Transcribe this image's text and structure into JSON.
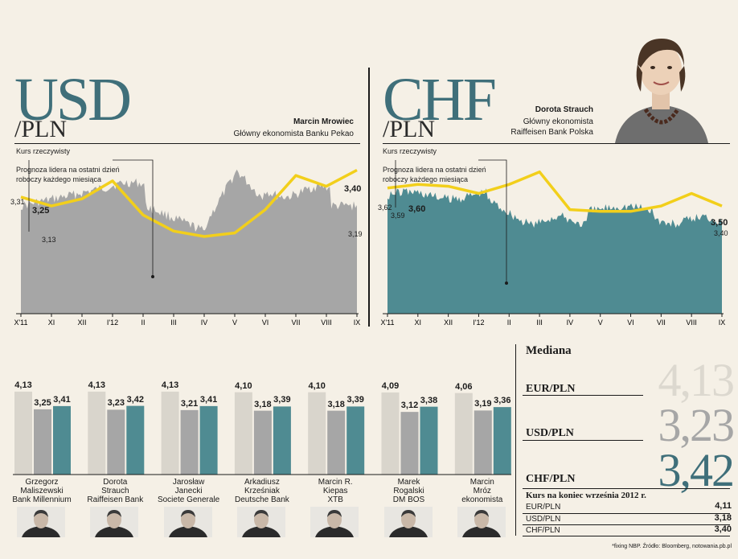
{
  "usd": {
    "title_big": "USD",
    "title_pair": "/PLN",
    "economist_name": "Marcin Mrowiec",
    "economist_role": "Główny ekonomista Banku Pekao",
    "legend_actual": "Kurs rzeczywisty",
    "legend_forecast_1": "Prognoza lidera na ostatni dzień",
    "legend_forecast_2": "roboczy każdego miesiąca"
  },
  "chf": {
    "title_big": "CHF",
    "title_pair": "/PLN",
    "economist_name": "Dorota Strauch",
    "economist_role_1": "Główny ekonomista",
    "economist_role_2": "Raiffeisen Bank Polska",
    "legend_actual": "Kurs rzeczywisty",
    "legend_forecast_1": "Prognoza lidera na ostatni dzień",
    "legend_forecast_2": "roboczy każdego miesiąca"
  },
  "chart_data": [
    {
      "type": "area",
      "id": "usd-pln",
      "categories": [
        "X'11",
        "XI",
        "XII",
        "I'12",
        "II",
        "III",
        "IV",
        "V",
        "VI",
        "VII",
        "VIII",
        "IX"
      ],
      "ylim": [
        2.6,
        3.55
      ],
      "series": [
        {
          "values": [
            3.25,
            3.2,
            3.24,
            3.34,
            3.15,
            3.06,
            3.03,
            3.05,
            3.18,
            3.37,
            3.31,
            3.4
          ]
        }
      ],
      "annotations": [
        "3,31",
        "3,25",
        "3,13",
        "3,40",
        "3,19"
      ]
    },
    {
      "type": "area",
      "id": "chf-pln",
      "categories": [
        "X'11",
        "XI",
        "XII",
        "I'12",
        "II",
        "III",
        "IV",
        "V",
        "VI",
        "VII",
        "VIII",
        "IX"
      ],
      "ylim": [
        2.9,
        3.85
      ],
      "series": [
        {
          "values": [
            3.6,
            3.62,
            3.61,
            3.57,
            3.62,
            3.69,
            3.48,
            3.47,
            3.47,
            3.5,
            3.57,
            3.5
          ]
        }
      ],
      "annotations": [
        "3,62",
        "3,59",
        "3,60",
        "3,50",
        "3,40"
      ]
    },
    {
      "type": "bar",
      "id": "forecasters",
      "categories": [
        "Grzegorz Maliszewski Bank Millennium",
        "Dorota Strauch Raiffeisen Bank",
        "Jarosław Janecki Societe Generale",
        "Arkadiusz Krześniak Deutsche Bank",
        "Marcin R. Kiepas XTB",
        "Marek Rogalski DM BOS",
        "Marcin Mróz ekonomista"
      ],
      "series": [
        {
          "values": [
            4.13,
            4.13,
            4.13,
            4.1,
            4.1,
            4.09,
            4.06
          ]
        },
        {
          "values": [
            3.25,
            3.23,
            3.21,
            3.18,
            3.18,
            3.12,
            3.19
          ]
        },
        {
          "values": [
            3.41,
            3.42,
            3.41,
            3.39,
            3.39,
            3.38,
            3.36
          ]
        }
      ],
      "labels": [
        [
          "4,13",
          "3,25",
          "3,41"
        ],
        [
          "4,13",
          "3,23",
          "3,42"
        ],
        [
          "4,13",
          "3,21",
          "3,41"
        ],
        [
          "4,10",
          "3,18",
          "3,39"
        ],
        [
          "4,10",
          "3,18",
          "3,39"
        ],
        [
          "4,09",
          "3,12",
          "3,38"
        ],
        [
          "4,06",
          "3,19",
          "3,36"
        ]
      ],
      "ylim": [
        0,
        4.5
      ]
    }
  ],
  "forecasters": [
    {
      "l1": "Grzegorz",
      "l2": "Maliszewski",
      "l3": "Bank Millennium"
    },
    {
      "l1": "Dorota",
      "l2": "Strauch",
      "l3": "Raiffeisen Bank"
    },
    {
      "l1": "Jarosław",
      "l2": "Janecki",
      "l3": "Societe Generale"
    },
    {
      "l1": "Arkadiusz",
      "l2": "Krześniak",
      "l3": "Deutsche Bank"
    },
    {
      "l1": "Marcin R.",
      "l2": "Kiepas",
      "l3": "XTB"
    },
    {
      "l1": "Marek",
      "l2": "Rogalski",
      "l3": "DM BOS"
    },
    {
      "l1": "Marcin",
      "l2": "Mróz",
      "l3": "ekonomista"
    }
  ],
  "median": {
    "title": "Mediana",
    "rows": [
      {
        "label": "EUR/PLN",
        "value": "4,13"
      },
      {
        "label": "USD/PLN",
        "value": "3,23"
      },
      {
        "label": "CHF/PLN",
        "value": "3,42"
      }
    ]
  },
  "end_of_month": {
    "title": "Kurs na koniec września 2012 r.",
    "rows": [
      {
        "label": "EUR/PLN",
        "value": "4,11"
      },
      {
        "label": "USD/PLN",
        "value": "3,18"
      },
      {
        "label": "CHF/PLN",
        "value": "3,40"
      }
    ]
  },
  "footnote": "*fixing NBP. Źródło: Bloomberg, notowania.pb.pl",
  "colors": {
    "usd_area": "#a6a6a6",
    "chf_area": "#4f8b92",
    "forecast_line": "#f2cf1b",
    "bar_eur": "#d9d5cc",
    "bar_usd": "#a6a6a6",
    "bar_chf": "#4f8b92",
    "accent": "#3f6f7a"
  }
}
